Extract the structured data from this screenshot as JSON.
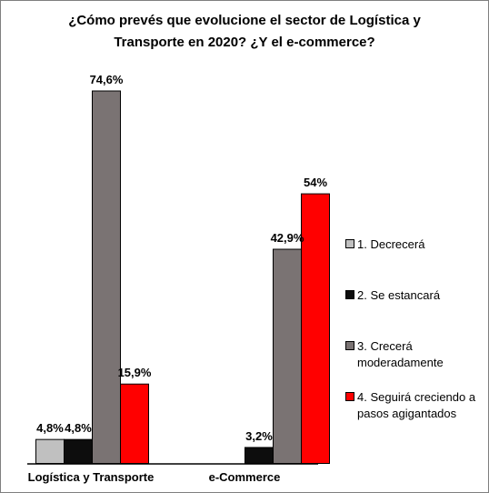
{
  "chart_data": {
    "type": "bar",
    "title": "¿Cómo prevés que evolucione el sector de Logística y Transporte en 2020? ¿Y el e-commerce?",
    "title_lines": [
      "¿Cómo prevés que evolucione el sector de Logística y",
      "Transporte en 2020? ¿Y el e-commerce?"
    ],
    "categories": [
      "Logística y Transporte",
      "e-Commerce"
    ],
    "series": [
      {
        "name": "1. Decrecerá",
        "name_lines": [
          "1. Decrecerá"
        ],
        "color": "#c0c0c0",
        "values": [
          4.8,
          0
        ],
        "labels": [
          "4,8%",
          ""
        ]
      },
      {
        "name": "2. Se estancará",
        "name_lines": [
          "2. Se estancará"
        ],
        "color": "#0d0d0d",
        "values": [
          4.8,
          3.2
        ],
        "labels": [
          "4,8%",
          "3,2%"
        ]
      },
      {
        "name": "3. Crecerá moderadamente",
        "name_lines": [
          "3. Crecerá",
          "moderadamente"
        ],
        "color": "#7a7373",
        "values": [
          74.6,
          42.9
        ],
        "labels": [
          "74,6%",
          "42,9%"
        ]
      },
      {
        "name": "4. Seguirá creciendo a pasos agigantados",
        "name_lines": [
          "4. Seguirá creciendo a",
          "pasos agigantados"
        ],
        "color": "#ff0000",
        "values": [
          15.9,
          54
        ],
        "labels": [
          "15,9%",
          "54%"
        ]
      }
    ],
    "ylim": [
      0,
      80
    ],
    "xlabel": "",
    "ylabel": "",
    "grid": false,
    "legend_position": "right"
  }
}
